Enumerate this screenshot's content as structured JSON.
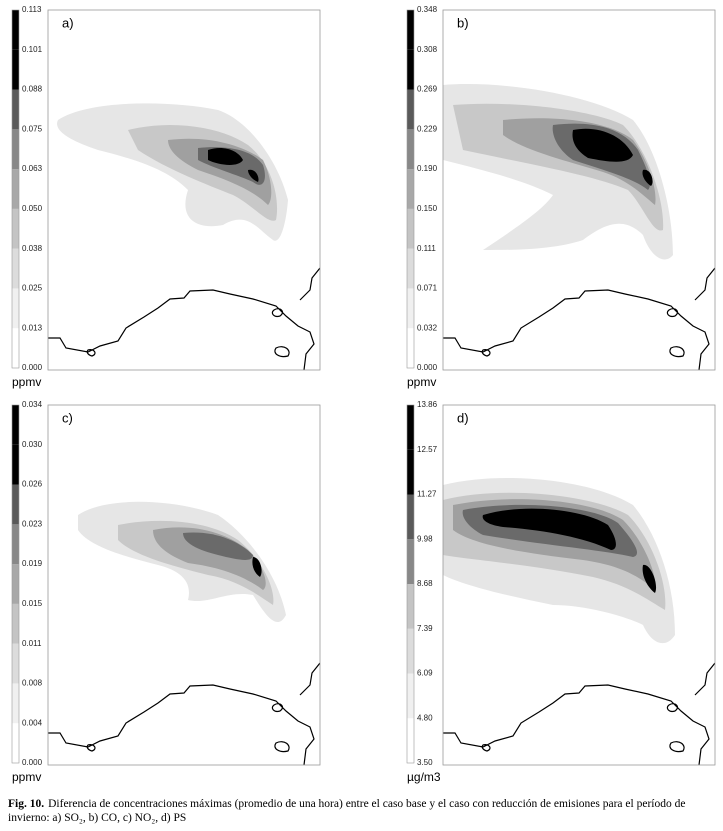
{
  "panels": [
    {
      "label": "a)",
      "unit": "ppmv",
      "colorbar": [
        "0.113",
        "0.101",
        "0.088",
        "0.075",
        "0.063",
        "0.050",
        "0.038",
        "0.025",
        "0.013",
        "0.000"
      ]
    },
    {
      "label": "b)",
      "unit": "ppmv",
      "colorbar": [
        "0.348",
        "0.308",
        "0.269",
        "0.229",
        "0.190",
        "0.150",
        "0.111",
        "0.071",
        "0.032",
        "0.000"
      ]
    },
    {
      "label": "c)",
      "unit": "ppmv",
      "colorbar": [
        "0.034",
        "0.030",
        "0.026",
        "0.023",
        "0.019",
        "0.015",
        "0.011",
        "0.008",
        "0.004",
        "0.000"
      ]
    },
    {
      "label": "d)",
      "unit": "µg/m3",
      "colorbar": [
        "13.86",
        "12.57",
        "11.27",
        "9.98",
        "8.68",
        "7.39",
        "6.09",
        "4.80",
        "3.50"
      ]
    }
  ],
  "caption": {
    "label": "Fig. 10.",
    "text": "Diferencia de concentraciones máximas (promedio de una hora) entre el caso base y el caso con reducción de emisiones para el período de invierno: a) SO₂, b) CO, c) NO₂, d) PS"
  }
}
